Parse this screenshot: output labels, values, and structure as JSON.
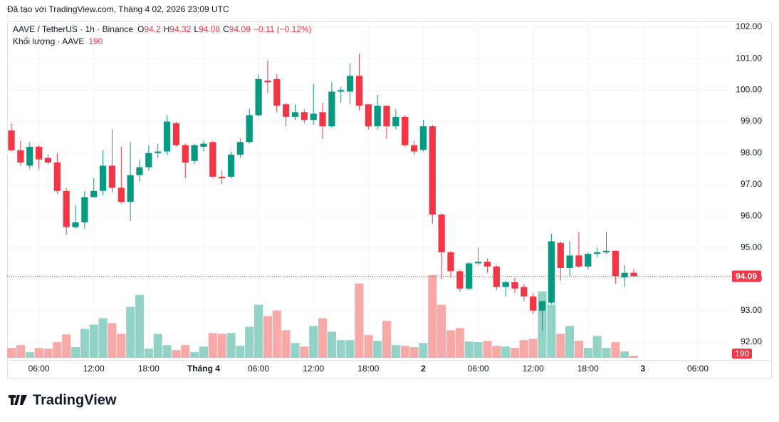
{
  "header": "Đã tạo với TradingView.com, Tháng 4 02, 2026 23:09 UTC",
  "footer": "TradingView",
  "chart_data": {
    "type": "candlestick",
    "title": "AAVE / TetherUS · 1h · Binance",
    "ohlc_letters": [
      "O",
      "H",
      "L",
      "C"
    ],
    "change_label": "−0.11 (−0.12%)",
    "volume_label": "Khối lượng · AAVE",
    "up_color": "#089981",
    "down_color": "#f23645",
    "volume_up_color": "#92d2c7",
    "volume_down_color": "#f7a9a8",
    "open": [
      98.72,
      98.09,
      97.6,
      98.2,
      97.85,
      97.7,
      96.8,
      95.65,
      95.8,
      96.6,
      96.8,
      97.6,
      96.9,
      96.45,
      97.3,
      97.55,
      98.0,
      98.05,
      98.95,
      98.25,
      97.75,
      98.2,
      98.35,
      97.25,
      97.25,
      97.95,
      98.35,
      99.2,
      100.3,
      100.35,
      99.55,
      99.15,
      99.3,
      99.05,
      99.3,
      98.85,
      99.95,
      99.95,
      100.45,
      99.55,
      98.85,
      99.5,
      98.85,
      99.15,
      98.25,
      98.1,
      98.85,
      96.05,
      94.85,
      94.25,
      93.7,
      94.5,
      94.55,
      94.4,
      93.75,
      93.9,
      93.75,
      93.45,
      93.0,
      93.25,
      95.15,
      94.35,
      94.75,
      94.4,
      94.8,
      94.85,
      94.9,
      94.05,
      94.2
    ],
    "high": [
      98.95,
      98.4,
      98.35,
      98.25,
      97.95,
      98.0,
      96.9,
      96.35,
      96.8,
      97.2,
      98.1,
      98.75,
      98.2,
      98.35,
      97.8,
      98.25,
      98.3,
      99.2,
      99.0,
      98.3,
      98.3,
      98.4,
      98.4,
      97.45,
      98.05,
      98.45,
      99.4,
      100.5,
      100.95,
      100.5,
      99.6,
      99.55,
      99.4,
      100.2,
      99.6,
      100.25,
      100.1,
      100.85,
      101.15,
      99.55,
      99.85,
      99.5,
      99.4,
      99.2,
      98.4,
      99.05,
      98.9,
      96.1,
      94.9,
      94.3,
      94.55,
      95.0,
      94.65,
      94.45,
      93.95,
      94.05,
      93.85,
      93.55,
      93.3,
      95.45,
      95.2,
      95.2,
      95.5,
      94.85,
      95.0,
      95.5,
      94.9,
      94.45,
      94.32
    ],
    "low": [
      98.05,
      97.6,
      97.5,
      97.5,
      97.65,
      96.7,
      95.4,
      95.6,
      95.6,
      96.6,
      96.65,
      96.75,
      96.4,
      95.85,
      97.1,
      97.45,
      97.85,
      97.95,
      98.2,
      97.2,
      97.65,
      98.05,
      97.2,
      97.0,
      97.2,
      97.85,
      98.3,
      99.15,
      99.9,
      99.3,
      98.85,
      99.05,
      98.95,
      98.9,
      98.45,
      98.8,
      99.6,
      99.55,
      99.35,
      98.75,
      98.75,
      98.45,
      98.75,
      98.2,
      97.95,
      98.05,
      95.75,
      94.0,
      94.05,
      93.6,
      93.65,
      94.45,
      94.2,
      93.65,
      93.45,
      93.55,
      93.3,
      92.9,
      92.35,
      93.2,
      93.95,
      94.1,
      94.35,
      94.3,
      94.7,
      94.8,
      93.85,
      93.75,
      94.08
    ],
    "close": [
      98.09,
      97.7,
      98.2,
      97.8,
      97.7,
      96.8,
      95.65,
      95.8,
      96.6,
      96.8,
      97.6,
      96.9,
      96.45,
      97.3,
      97.55,
      98.0,
      98.05,
      99.0,
      98.25,
      97.7,
      98.25,
      98.3,
      97.25,
      97.2,
      97.95,
      98.35,
      99.2,
      100.35,
      100.25,
      99.5,
      99.15,
      99.3,
      99.05,
      99.25,
      98.85,
      99.95,
      100.0,
      100.45,
      99.5,
      98.85,
      99.5,
      98.85,
      99.15,
      98.25,
      98.05,
      98.85,
      96.05,
      94.85,
      94.25,
      93.7,
      94.5,
      94.55,
      94.4,
      93.75,
      93.9,
      93.7,
      93.45,
      93.0,
      93.3,
      95.2,
      94.35,
      94.75,
      94.4,
      94.8,
      94.85,
      94.9,
      94.1,
      94.2,
      94.09
    ],
    "volume": [
      880,
      1130,
      500,
      880,
      820,
      1390,
      2080,
      950,
      2580,
      2960,
      3530,
      3090,
      2140,
      4540,
      5610,
      820,
      2140,
      1130,
      690,
      1130,
      500,
      1010,
      2210,
      2140,
      2210,
      1070,
      2770,
      4730,
      3720,
      4220,
      2460,
      1320,
      1010,
      2840,
      3530,
      2330,
      1580,
      1580,
      6620,
      2020,
      1510,
      3280,
      1130,
      1070,
      950,
      1320,
      7370,
      4730,
      2460,
      2650,
      1450,
      1390,
      1510,
      1070,
      1010,
      880,
      1580,
      1700,
      5920,
      4730,
      2140,
      2840,
      1510,
      880,
      1950,
      880,
      1390,
      570,
      190
    ],
    "volume_lim": [
      0,
      8000
    ],
    "xlim": [
      -0.47,
      78.5
    ],
    "xticks": [
      {
        "value": 3,
        "label": "06:00"
      },
      {
        "value": 9,
        "label": "12:00"
      },
      {
        "value": 15,
        "label": "18:00"
      },
      {
        "value": 21,
        "label": "Tháng 4"
      },
      {
        "value": 27,
        "label": "06:00"
      },
      {
        "value": 33,
        "label": "12:00"
      },
      {
        "value": 39,
        "label": "18:00"
      },
      {
        "value": 45,
        "label": "2"
      },
      {
        "value": 51,
        "label": "06:00"
      },
      {
        "value": 57,
        "label": "12:00"
      },
      {
        "value": 63,
        "label": "18:00"
      },
      {
        "value": 69,
        "label": "3"
      },
      {
        "value": 75,
        "label": "06:00"
      }
    ],
    "ylim": [
      91.5,
      102.18
    ],
    "yticks": [
      {
        "value": 92,
        "label": "92.00"
      },
      {
        "value": 93,
        "label": "93.00"
      },
      {
        "value": 94,
        "label": "94.00"
      },
      {
        "value": 95,
        "label": "95.00"
      },
      {
        "value": 96,
        "label": "96.00"
      },
      {
        "value": 97,
        "label": "97.00"
      },
      {
        "value": 98,
        "label": "98.00"
      },
      {
        "value": 99,
        "label": "99.00"
      },
      {
        "value": 100,
        "label": "100.00"
      },
      {
        "value": 101,
        "label": "101.00"
      },
      {
        "value": 102,
        "label": "102.00"
      }
    ],
    "grid": true
  }
}
